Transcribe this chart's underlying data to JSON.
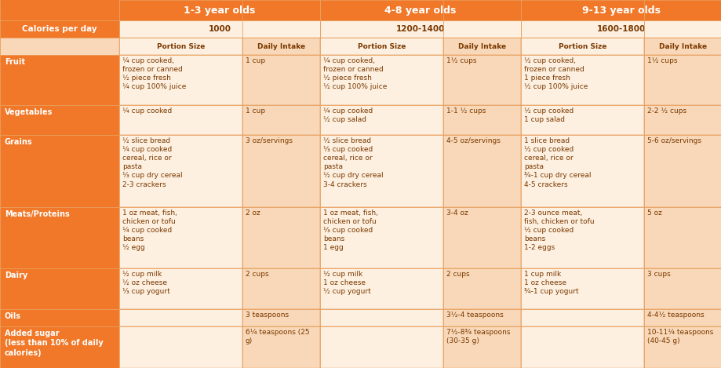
{
  "col_header_bg": "#F07828",
  "row_label_bg": "#F07828",
  "light_bg": "#F8D8B8",
  "very_light_bg": "#FDF0E0",
  "header_text_color": "#FFFFFF",
  "cell_text_color": "#7A3800",
  "border_color": "#E8A060",
  "age_groups": [
    "1-3 year olds",
    "4-8 year olds",
    "9-13 year olds"
  ],
  "calories": [
    "1000",
    "1200-1400",
    "1600-1800"
  ],
  "row_labels": [
    "Calories per day",
    "",
    "Fruit",
    "Vegetables",
    "Grains",
    "Meats/Proteins",
    "Dairy",
    "Oils",
    "Added sugar\n(less than 10% of daily\ncalories)"
  ],
  "row_data": [
    [
      "¼ cup cooked,\nfrozen or canned\n½ piece fresh\n¼ cup 100% juice",
      "1 cup",
      "¼ cup cooked,\nfrozen or canned\n½ piece fresh\n½ cup 100% juice",
      "1½ cups",
      "½ cup cooked,\nfrozen or canned\n1 piece fresh\n½ cup 100% juice",
      "1½ cups"
    ],
    [
      "¼ cup cooked",
      "1 cup",
      "¼ cup cooked\n½ cup salad",
      "1-1 ½ cups",
      "½ cup cooked\n1 cup salad",
      "2-2 ½ cups"
    ],
    [
      "½ slice bread\n¼ cup cooked\ncereal, rice or\npasta\n⅓ cup dry cereal\n2-3 crackers",
      "3 oz/servings",
      "½ slice bread\n⅓ cup cooked\ncereal, rice or\npasta\n½ cup dry cereal\n3-4 crackers",
      "4-5 oz/servings",
      "1 slice bread\n½ cup cooked\ncereal, rice or\npasta\n¾-1 cup dry cereal\n4-5 crackers",
      "5-6 oz/servings"
    ],
    [
      "1 oz meat, fish,\nchicken or tofu\n¼ cup cooked\nbeans\n½ egg",
      "2 oz",
      "1 oz meat, fish,\nchicken or tofu\n⅓ cup cooked\nbeans\n1 egg",
      "3-4 oz",
      "2-3 ounce meat,\nfish, chicken or tofu\n½ cup cooked\nbeans\n1-2 eggs",
      "5 oz"
    ],
    [
      "½ cup milk\n½ oz cheese\n⅓ cup yogurt",
      "2 cups",
      "½ cup milk\n1 oz cheese\n½ cup yogurt",
      "2 cups",
      "1 cup milk\n1 oz cheese\n¾-1 cup yogurt",
      "3 cups"
    ],
    [
      "",
      "3 teaspoons",
      "",
      "3½-4 teaspoons",
      "",
      "4-4½ teaspoons"
    ],
    [
      "",
      "6¼ teaspoons (25\ng)",
      "",
      "7½-8¾ teaspoons\n(30-35 g)",
      "",
      "10-11¼ teaspoons\n(40-45 g)"
    ]
  ],
  "data_row_labels": [
    "Fruit",
    "Vegetables",
    "Grains",
    "Meats/Proteins",
    "Dairy",
    "Oils",
    "Added sugar\n(less than 10% of daily\ncalories)"
  ]
}
